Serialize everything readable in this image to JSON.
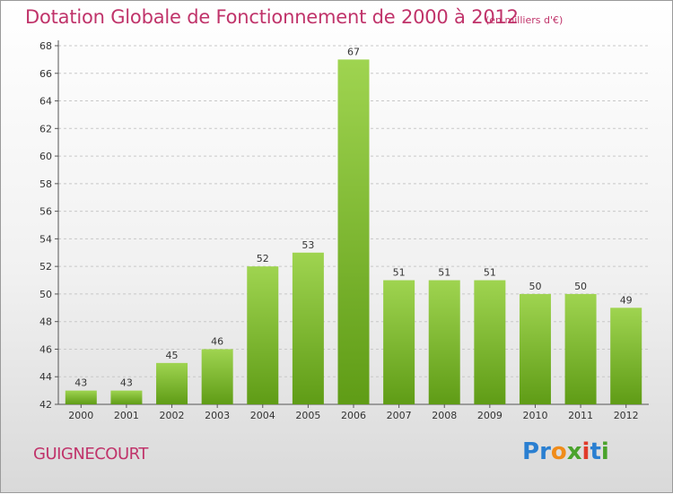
{
  "header": {
    "title": "Dotation Globale de Fonctionnement de 2000 à 2012",
    "subtitle": "(en milliers d'€)"
  },
  "footer": {
    "commune": "GUIGNECOURT",
    "logo_text": "Proxiti",
    "logo_letters": [
      {
        "ch": "P",
        "color": "#2a7fd1"
      },
      {
        "ch": "r",
        "color": "#2a7fd1"
      },
      {
        "ch": "o",
        "color": "#f08c1a"
      },
      {
        "ch": "x",
        "color": "#4aa32c"
      },
      {
        "ch": "i",
        "color": "#e03a2a"
      },
      {
        "ch": "t",
        "color": "#2a7fd1"
      },
      {
        "ch": "i",
        "color": "#4aa32c"
      }
    ]
  },
  "colors": {
    "title": "#c0336a",
    "bar_light": "#9fd450",
    "bar_dark": "#5f9c16",
    "grid": "#c8c8c8"
  },
  "chart_data": {
    "type": "bar",
    "title": "Dotation Globale de Fonctionnement de 2000 à 2012",
    "subtitle": "(en milliers d'€)",
    "xlabel": "",
    "ylabel": "",
    "categories": [
      "2000",
      "2001",
      "2002",
      "2003",
      "2004",
      "2005",
      "2006",
      "2007",
      "2008",
      "2009",
      "2010",
      "2011",
      "2012"
    ],
    "values": [
      43,
      43,
      45,
      46,
      52,
      53,
      67,
      51,
      51,
      51,
      50,
      50,
      49
    ],
    "ylim": [
      42,
      68
    ],
    "yticks": [
      42,
      44,
      46,
      48,
      50,
      52,
      54,
      56,
      58,
      60,
      62,
      64,
      66,
      68
    ],
    "grid": "horizontal dashed",
    "data_labels": true
  }
}
